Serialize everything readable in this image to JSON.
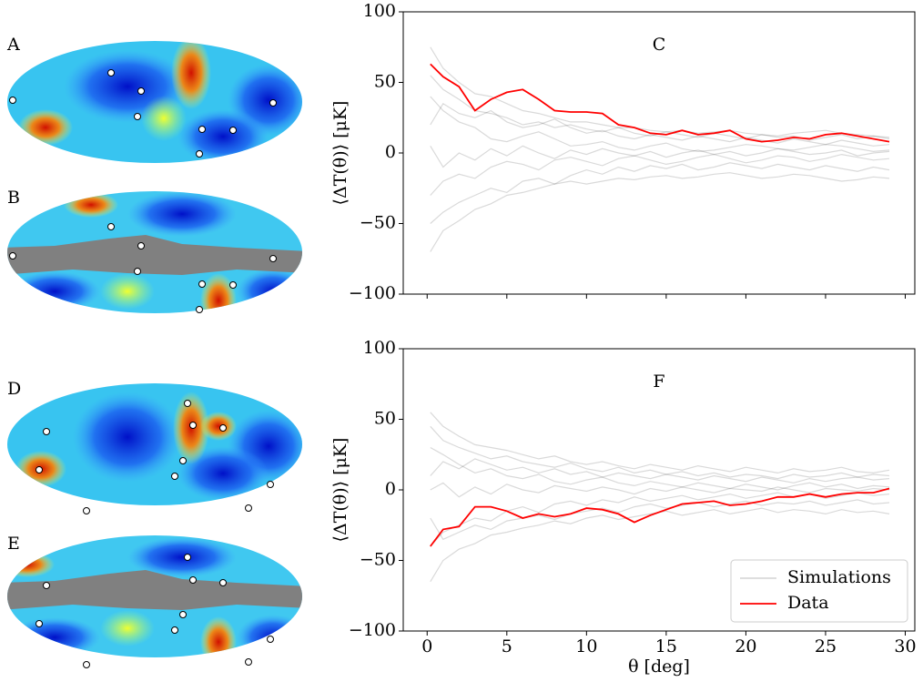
{
  "map_labels": [
    "A",
    "B",
    "D",
    "E"
  ],
  "chart_data": [
    {
      "type": "line",
      "title": "C",
      "ylabel": "⟨ΔT(θ)⟩ [μK]",
      "x": [
        0.2,
        1,
        2,
        3,
        4,
        5,
        6,
        7,
        8,
        9,
        10,
        11,
        12,
        13,
        14,
        15,
        16,
        17,
        18,
        19,
        20,
        21,
        22,
        23,
        24,
        25,
        26,
        27,
        28,
        29
      ],
      "xlim": [
        -1.5,
        30.6
      ],
      "xticks": [
        0,
        5,
        10,
        15,
        20,
        25,
        30
      ],
      "xticklabels": false,
      "ylim": [
        -100,
        100
      ],
      "yticks": [
        {
          "value": -100,
          "label": "−100"
        },
        {
          "value": -50,
          "label": "−50"
        },
        0,
        50,
        100
      ],
      "series": [
        {
          "color": "#000000",
          "alpha": 0.15,
          "values": [
            [
              75,
              60,
              50,
              42,
              40,
              35,
              30,
              28,
              25,
              22,
              22,
              20,
              18,
              18,
              16,
              15,
              16,
              14,
              15,
              16,
              14,
              13,
              12,
              14,
              15,
              16,
              14,
              13,
              12,
              10
            ],
            [
              -70,
              -55,
              -48,
              -40,
              -36,
              -30,
              -28,
              -25,
              -22,
              -20,
              -22,
              -20,
              -18,
              -19,
              -17,
              -16,
              -18,
              -17,
              -15,
              -14,
              -16,
              -18,
              -17,
              -15,
              -16,
              -18,
              -20,
              -19,
              -17,
              -18
            ],
            [
              40,
              30,
              22,
              18,
              10,
              8,
              12,
              15,
              10,
              5,
              6,
              8,
              4,
              2,
              5,
              7,
              3,
              1,
              2,
              4,
              6,
              5,
              3,
              2,
              4,
              6,
              5,
              3,
              1,
              2
            ],
            [
              -30,
              -20,
              -15,
              -18,
              -10,
              -6,
              -8,
              -12,
              -5,
              -3,
              -6,
              -9,
              -4,
              -2,
              -5,
              -8,
              -6,
              -3,
              -1,
              -4,
              -7,
              -5,
              -2,
              -3,
              -6,
              -4,
              -1,
              -3,
              -5,
              -4
            ],
            [
              20,
              35,
              28,
              25,
              30,
              22,
              18,
              20,
              24,
              18,
              14,
              16,
              12,
              10,
              13,
              11,
              9,
              12,
              10,
              8,
              11,
              9,
              7,
              10,
              8,
              6,
              9,
              7,
              5,
              6
            ],
            [
              -50,
              -42,
              -35,
              -30,
              -25,
              -28,
              -20,
              -18,
              -22,
              -16,
              -12,
              -15,
              -10,
              -13,
              -9,
              -11,
              -8,
              -12,
              -10,
              -7,
              -9,
              -11,
              -8,
              -10,
              -12,
              -9,
              -11,
              -13,
              -10,
              -12
            ],
            [
              5,
              -10,
              0,
              -5,
              3,
              -2,
              5,
              0,
              -4,
              2,
              -1,
              3,
              0,
              -2,
              1,
              -3,
              0,
              2,
              -1,
              1,
              -2,
              0,
              3,
              1,
              -1,
              0,
              2,
              -2,
              0,
              1
            ],
            [
              55,
              45,
              38,
              30,
              28,
              25,
              20,
              22,
              18,
              20,
              17,
              15,
              18,
              14,
              12,
              15,
              13,
              11,
              14,
              12,
              10,
              13,
              11,
              12,
              9,
              11,
              13,
              10,
              12,
              11
            ]
          ]
        },
        {
          "color": "#ff0000",
          "values": [
            63,
            54,
            47,
            30,
            38,
            43,
            45,
            38,
            30,
            29,
            29,
            28,
            20,
            18,
            14,
            13,
            16,
            13,
            14,
            16,
            10,
            8,
            9,
            11,
            10,
            13,
            14,
            12,
            10,
            8
          ]
        }
      ]
    },
    {
      "type": "line",
      "title": "F",
      "ylabel": "⟨ΔT(θ)⟩ [μK]",
      "xlabel": "θ [deg]",
      "x": [
        0.2,
        1,
        2,
        3,
        4,
        5,
        6,
        7,
        8,
        9,
        10,
        11,
        12,
        13,
        14,
        15,
        16,
        17,
        18,
        19,
        20,
        21,
        22,
        23,
        24,
        25,
        26,
        27,
        28,
        29
      ],
      "xlim": [
        -1.5,
        30.6
      ],
      "xticks": [
        0,
        5,
        10,
        15,
        20,
        25,
        30
      ],
      "xticklabels": true,
      "ylim": [
        -100,
        100
      ],
      "yticks": [
        {
          "value": -100,
          "label": "−100"
        },
        {
          "value": -50,
          "label": "−50"
        },
        0,
        50,
        100
      ],
      "legend": "lower right",
      "series": [
        {
          "name": "Simulations",
          "color": "#000000",
          "alpha": 0.15,
          "values": [
            [
              55,
              45,
              38,
              32,
              30,
              28,
              25,
              22,
              24,
              20,
              18,
              20,
              17,
              15,
              18,
              16,
              14,
              17,
              15,
              13,
              16,
              14,
              12,
              15,
              13,
              14,
              16,
              13,
              12,
              14
            ],
            [
              -65,
              -50,
              -42,
              -38,
              -32,
              -30,
              -27,
              -25,
              -22,
              -24,
              -20,
              -18,
              -21,
              -19,
              -17,
              -15,
              -18,
              -16,
              -14,
              -17,
              -15,
              -13,
              -16,
              -14,
              -15,
              -17,
              -14,
              -16,
              -15,
              -17
            ],
            [
              30,
              25,
              18,
              12,
              15,
              10,
              8,
              11,
              6,
              4,
              7,
              9,
              5,
              3,
              6,
              4,
              2,
              5,
              3,
              1,
              4,
              2,
              0,
              3,
              5,
              2,
              4,
              1,
              3,
              2
            ],
            [
              -40,
              -30,
              -25,
              -20,
              -22,
              -15,
              -12,
              -16,
              -10,
              -8,
              -11,
              -7,
              -9,
              -5,
              -8,
              -6,
              -4,
              -7,
              -5,
              -3,
              -6,
              -4,
              -2,
              -5,
              -3,
              -6,
              -4,
              -2,
              -4,
              -3
            ],
            [
              10,
              20,
              15,
              22,
              18,
              14,
              16,
              12,
              15,
              11,
              13,
              9,
              12,
              10,
              8,
              11,
              9,
              7,
              10,
              8,
              6,
              9,
              7,
              5,
              8,
              6,
              8,
              9,
              7,
              8
            ],
            [
              -20,
              -35,
              -30,
              -25,
              -28,
              -22,
              -20,
              -18,
              -21,
              -17,
              -15,
              -13,
              -16,
              -12,
              -10,
              -13,
              -11,
              -9,
              -12,
              -10,
              -8,
              -11,
              -9,
              -10,
              -8,
              -11,
              -9,
              -7,
              -10,
              -9
            ],
            [
              0,
              5,
              -5,
              2,
              -3,
              4,
              0,
              -2,
              3,
              1,
              -1,
              2,
              0,
              -3,
              1,
              -1,
              2,
              0,
              -2,
              1,
              0,
              -1,
              2,
              0,
              -2,
              1,
              0,
              -1,
              1,
              0
            ],
            [
              45,
              35,
              30,
              26,
              22,
              24,
              20,
              18,
              16,
              19,
              15,
              13,
              16,
              12,
              14,
              11,
              13,
              10,
              12,
              9,
              11,
              10,
              8,
              11,
              9,
              10,
              12,
              9,
              11,
              10
            ]
          ]
        },
        {
          "name": "Data",
          "color": "#ff0000",
          "values": [
            -40,
            -28,
            -26,
            -12,
            -12,
            -15,
            -20,
            -17,
            -19,
            -17,
            -13,
            -14,
            -17,
            -23,
            -18,
            -14,
            -10,
            -9,
            -8,
            -11,
            -10,
            -8,
            -5,
            -5,
            -3,
            -5,
            -3,
            -2,
            -2,
            1
          ]
        }
      ]
    }
  ]
}
